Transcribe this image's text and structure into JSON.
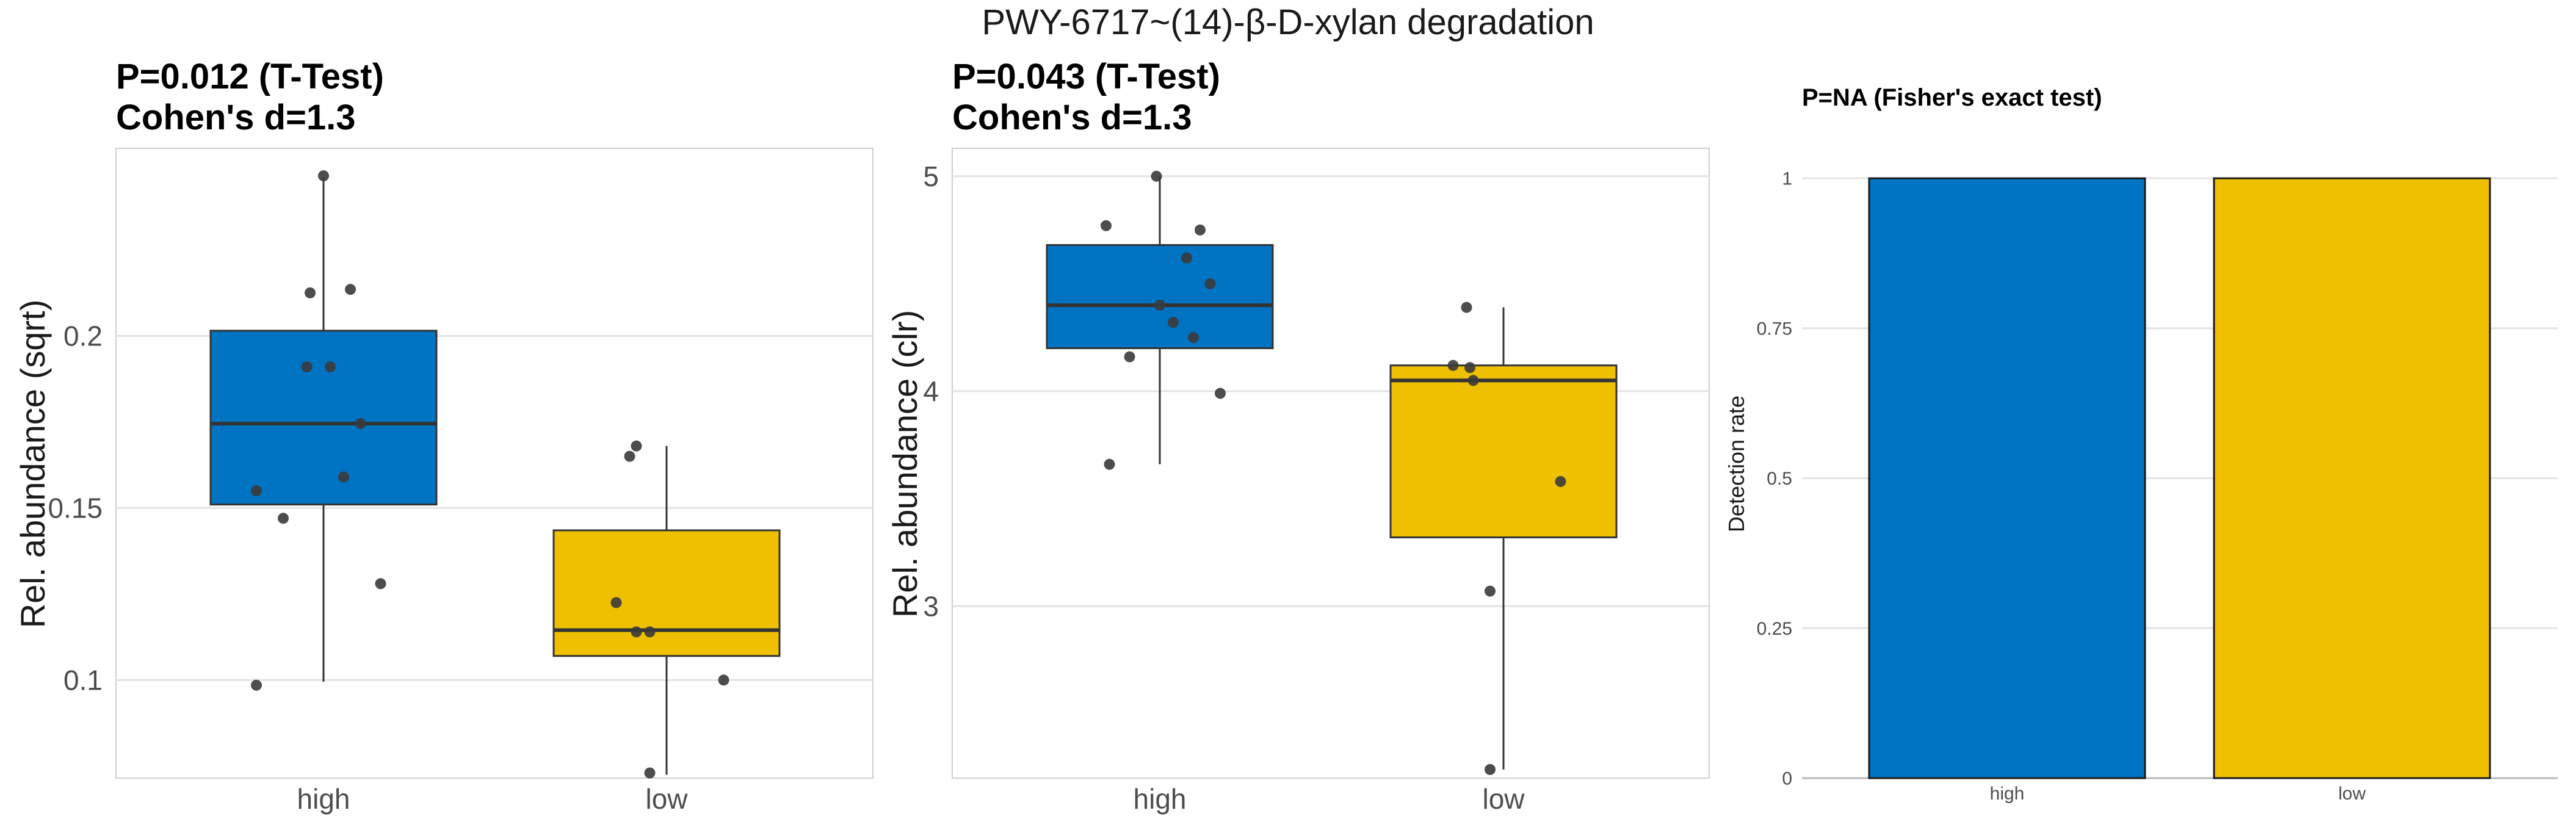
{
  "figure_title": "PWY-6717~(14)-β-D-xylan degradation",
  "colors": {
    "high": "#0073C2",
    "low": "#EFC000",
    "point": "#3a3a3a",
    "line": "#333333",
    "grid": "#e3e3e3",
    "frame": "#cfcfcf"
  },
  "chart_data": [
    {
      "type": "box",
      "title_line1": "P=0.012 (T-Test)",
      "title_line2": "Cohen's d=1.3",
      "ylabel": "Rel. abundance (sqrt)",
      "xlabel": "",
      "categories": [
        "high",
        "low"
      ],
      "ylim": [
        0.0715,
        0.2545
      ],
      "yticks": [
        0.1,
        0.15,
        0.2
      ],
      "ytick_labels": [
        "0.1",
        "0.15",
        "0.2"
      ],
      "grid": true,
      "boxes": [
        {
          "group": "high",
          "whisker_low": 0.0995,
          "q1": 0.151,
          "median": 0.1745,
          "q3": 0.2015,
          "whisker_high": 0.246
        },
        {
          "group": "low",
          "whisker_low": 0.0725,
          "q1": 0.107,
          "median": 0.1145,
          "q3": 0.1435,
          "whisker_high": 0.168
        }
      ],
      "points": [
        {
          "group": "high",
          "jitter": -0.2,
          "y": 0.0985
        },
        {
          "group": "high",
          "jitter": -0.12,
          "y": 0.147
        },
        {
          "group": "high",
          "jitter": -0.2,
          "y": 0.155
        },
        {
          "group": "high",
          "jitter": 0.06,
          "y": 0.159
        },
        {
          "group": "high",
          "jitter": 0.11,
          "y": 0.1745
        },
        {
          "group": "high",
          "jitter": -0.05,
          "y": 0.191
        },
        {
          "group": "high",
          "jitter": 0.02,
          "y": 0.191
        },
        {
          "group": "high",
          "jitter": -0.04,
          "y": 0.2125
        },
        {
          "group": "high",
          "jitter": 0.08,
          "y": 0.2135
        },
        {
          "group": "high",
          "jitter": 0.0,
          "y": 0.2465
        },
        {
          "group": "high",
          "jitter": 0.17,
          "y": 0.128
        },
        {
          "group": "low",
          "jitter": -0.05,
          "y": 0.073
        },
        {
          "group": "low",
          "jitter": 0.17,
          "y": 0.1
        },
        {
          "group": "low",
          "jitter": -0.09,
          "y": 0.114
        },
        {
          "group": "low",
          "jitter": -0.05,
          "y": 0.114
        },
        {
          "group": "low",
          "jitter": -0.15,
          "y": 0.1225
        },
        {
          "group": "low",
          "jitter": -0.11,
          "y": 0.165
        },
        {
          "group": "low",
          "jitter": -0.09,
          "y": 0.168
        }
      ]
    },
    {
      "type": "box",
      "title_line1": "P=0.043 (T-Test)",
      "title_line2": "Cohen's d=1.3",
      "ylabel": "Rel. abundance (clr)",
      "xlabel": "",
      "categories": [
        "high",
        "low"
      ],
      "ylim": [
        2.2,
        5.13
      ],
      "yticks": [
        3,
        4,
        5
      ],
      "ytick_labels": [
        "3",
        "4",
        "5"
      ],
      "grid": true,
      "boxes": [
        {
          "group": "high",
          "whisker_low": 3.66,
          "q1": 4.2,
          "median": 4.4,
          "q3": 4.68,
          "whisker_high": 5.0
        },
        {
          "group": "low",
          "whisker_low": 2.24,
          "q1": 3.32,
          "median": 4.05,
          "q3": 4.12,
          "whisker_high": 4.39
        }
      ],
      "points": [
        {
          "group": "high",
          "jitter": -0.15,
          "y": 3.66
        },
        {
          "group": "high",
          "jitter": 0.18,
          "y": 3.99
        },
        {
          "group": "high",
          "jitter": -0.09,
          "y": 4.16
        },
        {
          "group": "high",
          "jitter": 0.1,
          "y": 4.25
        },
        {
          "group": "high",
          "jitter": 0.04,
          "y": 4.32
        },
        {
          "group": "high",
          "jitter": 0.0,
          "y": 4.4
        },
        {
          "group": "high",
          "jitter": 0.15,
          "y": 4.5
        },
        {
          "group": "high",
          "jitter": 0.08,
          "y": 4.62
        },
        {
          "group": "high",
          "jitter": 0.12,
          "y": 4.75
        },
        {
          "group": "high",
          "jitter": -0.16,
          "y": 4.77
        },
        {
          "group": "high",
          "jitter": -0.01,
          "y": 5.0
        },
        {
          "group": "low",
          "jitter": -0.04,
          "y": 2.24
        },
        {
          "group": "low",
          "jitter": -0.04,
          "y": 3.07
        },
        {
          "group": "low",
          "jitter": 0.17,
          "y": 3.58
        },
        {
          "group": "low",
          "jitter": -0.09,
          "y": 4.05
        },
        {
          "group": "low",
          "jitter": -0.15,
          "y": 4.12
        },
        {
          "group": "low",
          "jitter": -0.1,
          "y": 4.11
        },
        {
          "group": "low",
          "jitter": -0.11,
          "y": 4.39
        }
      ]
    },
    {
      "type": "bar",
      "title_line1": "P=NA (Fisher's exact test)",
      "title_line2": "",
      "ylabel": "Detection rate",
      "xlabel": "",
      "categories": [
        "high",
        "low"
      ],
      "values": [
        1,
        1
      ],
      "ylim": [
        0,
        1.05
      ],
      "yticks": [
        0,
        0.25,
        0.5,
        0.75,
        1
      ],
      "ytick_labels": [
        "0",
        "0.25",
        "0.5",
        "0.75",
        "1"
      ],
      "grid": true
    }
  ]
}
